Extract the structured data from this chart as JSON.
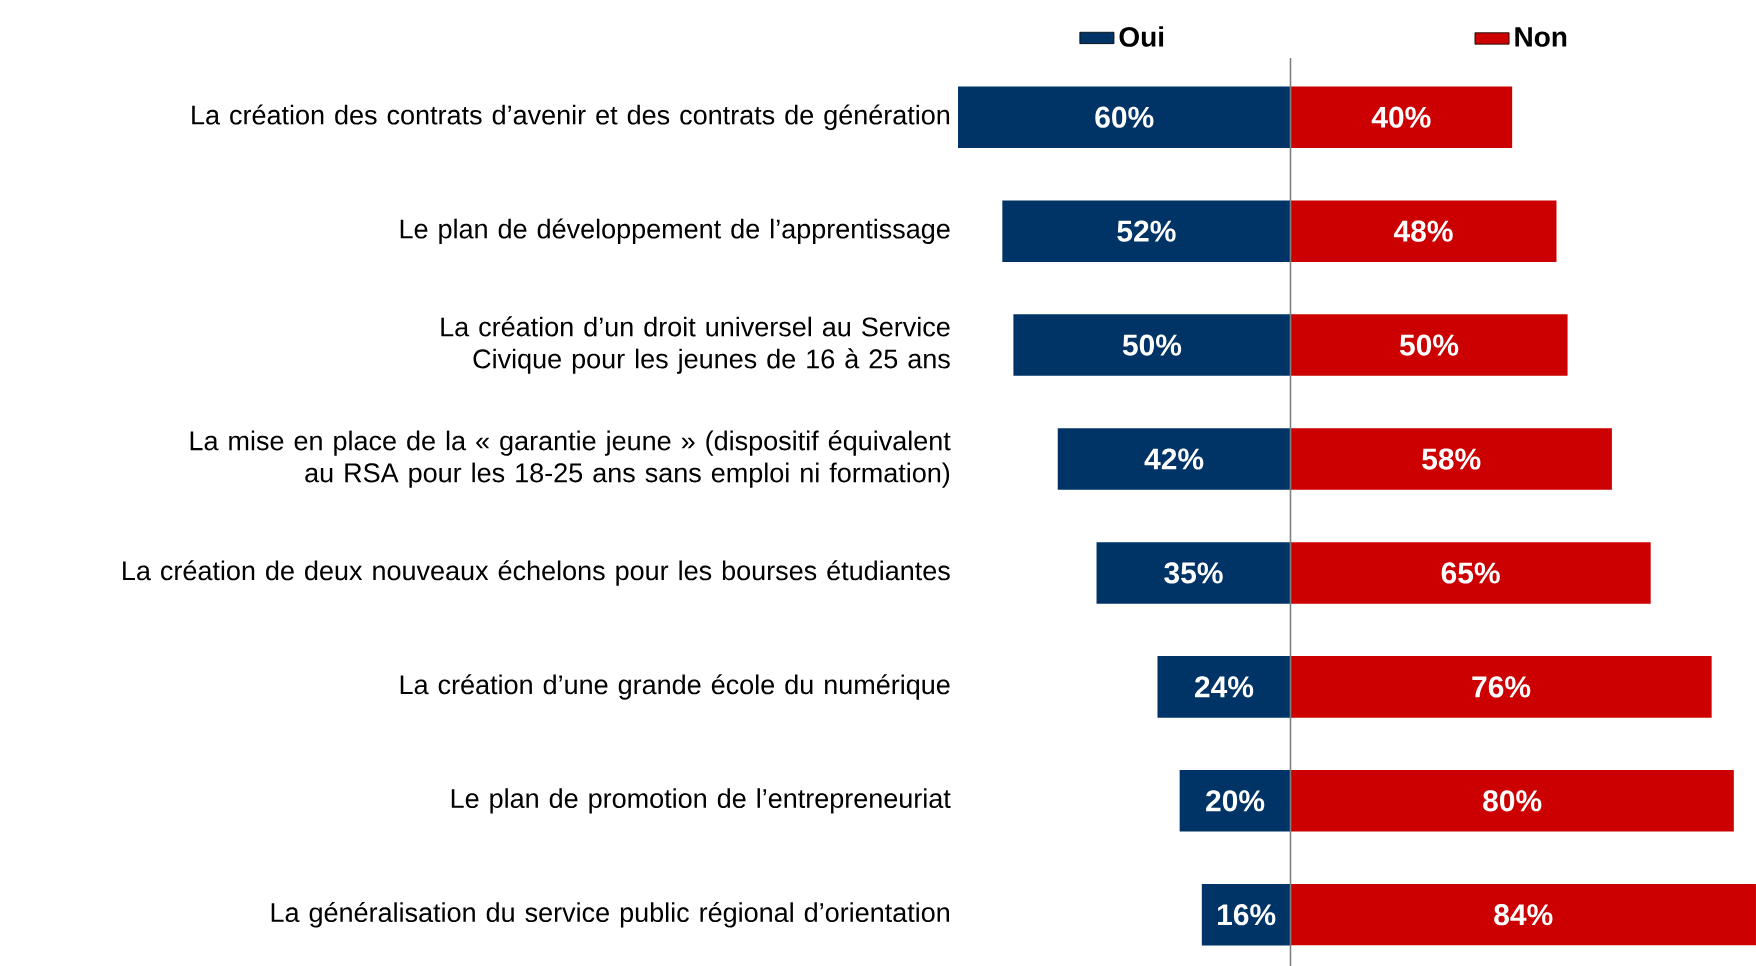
{
  "chart_data": [
    {
      "type": "bar",
      "orientation": "horizontal",
      "categories": [
        "La création des contrats d’avenir et des contrats de génération",
        "Le plan de développement de l’apprentissage",
        "La création d’un droit universel au Service Civique pour les jeunes de 16 à 25 ans",
        "La mise en place de la « garantie jeune » (dispositif équivalent au RSA pour les 18-25 ans sans emploi ni formation)",
        "La création de deux nouveaux échelons pour les bourses étudiantes",
        "La création d’une grande école du numérique",
        "Le plan de promotion de l’entrepreneuriat",
        "La généralisation du service public régional d’orientation"
      ],
      "series": [
        {
          "name": "Oui",
          "color": "#003366",
          "values": [
            60,
            52,
            50,
            42,
            35,
            24,
            20,
            16
          ],
          "value_labels": [
            "60%",
            "52%",
            "50%",
            "42%",
            "35%",
            "24%",
            "20%",
            "16%"
          ]
        }
      ],
      "xlim": [
        60,
        0
      ],
      "tick_labels": "y",
      "legend": "top",
      "grid": false
    },
    {
      "type": "bar",
      "orientation": "horizontal",
      "categories": [
        null,
        null,
        null,
        null,
        null,
        null,
        null,
        null
      ],
      "series": [
        {
          "name": "Non",
          "color": "#cc0000",
          "values": [
            40,
            48,
            50,
            58,
            65,
            76,
            80,
            84
          ],
          "value_labels": [
            "40%",
            "48%",
            "50%",
            "58%",
            "65%",
            "76%",
            "80%",
            "84%"
          ]
        }
      ],
      "xlim": [
        0,
        84
      ],
      "tick_labels": false,
      "legend": "top",
      "grid": false,
      "ref_lines": [
        {
          "axis": "x",
          "value": 0,
          "color": "#808080"
        }
      ]
    }
  ]
}
